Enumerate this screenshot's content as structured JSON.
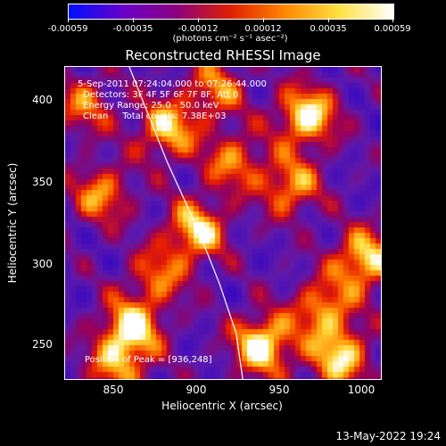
{
  "colorbar": {
    "tick_labels": [
      "-0.00059",
      "-0.00035",
      "-0.00012",
      "0.00012",
      "0.00035",
      "0.00059"
    ],
    "units": "(photons cm⁻² s⁻¹ asec⁻²)",
    "colors": [
      "#0010ff",
      "#6a00c8",
      "#8a0080",
      "#e02000",
      "#ff8a00",
      "#ffe040",
      "#ffffff"
    ]
  },
  "chart_data": {
    "type": "heatmap",
    "title": "Reconstructed RHESSI Image",
    "xlabel": "Heliocentric X (arcsec)",
    "ylabel": "Heliocentric Y (arcsec)",
    "xlim": [
      818,
      1010
    ],
    "ylim": [
      227,
      418
    ],
    "x_ticks": [
      "850",
      "900",
      "950",
      "1000"
    ],
    "y_ticks": [
      "250",
      "300",
      "350",
      "400"
    ],
    "annotations": {
      "time": "5-Sep-2011 07:24:04.000 to 07:26:44.000",
      "detectors": "Detectors: 3F 4F 5F 6F 7F 8F, Att 0",
      "energy": "Energy Range: 25.0 - 50.0 keV",
      "clean": "Clean     Total counts: 7.38E+03",
      "peak": "Position of Peak = [936,248]"
    },
    "peak": [
      936,
      248
    ],
    "hotspots": [
      {
        "x": 938,
        "y": 248,
        "v": 1.0
      },
      {
        "x": 965,
        "y": 388,
        "v": 0.95
      },
      {
        "x": 858,
        "y": 258,
        "v": 0.9
      },
      {
        "x": 898,
        "y": 318,
        "v": 0.85
      },
      {
        "x": 880,
        "y": 380,
        "v": 0.8
      },
      {
        "x": 1000,
        "y": 300,
        "v": 0.9
      },
      {
        "x": 955,
        "y": 345,
        "v": 0.7
      },
      {
        "x": 840,
        "y": 340,
        "v": 0.65
      },
      {
        "x": 985,
        "y": 240,
        "v": 0.85
      },
      {
        "x": 920,
        "y": 360,
        "v": 0.6
      },
      {
        "x": 830,
        "y": 395,
        "v": 0.55
      },
      {
        "x": 975,
        "y": 270,
        "v": 0.7
      },
      {
        "x": 875,
        "y": 290,
        "v": 0.55
      },
      {
        "x": 910,
        "y": 405,
        "v": 0.6
      },
      {
        "x": 850,
        "y": 235,
        "v": 0.6
      }
    ],
    "limb_curve": [
      [
        857,
        418
      ],
      [
        880,
        360
      ],
      [
        899,
        318
      ],
      [
        912,
        285
      ],
      [
        922,
        255
      ],
      [
        926,
        227
      ]
    ]
  },
  "timestamp": "13-May-2022 19:24"
}
